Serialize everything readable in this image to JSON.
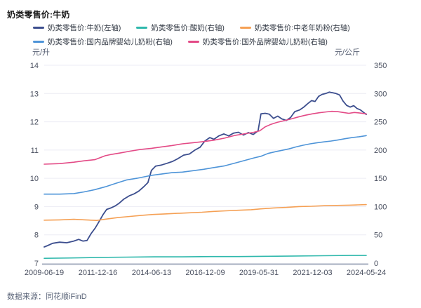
{
  "title": "奶类零售价:牛奶",
  "source_note": "数据来源：同花顺iFinD",
  "axis_units": {
    "left": "元/升",
    "right": "元/公斤"
  },
  "colors": {
    "milk_navy": "#3C4E8E",
    "yogurt_teal": "#2FB8AC",
    "senior_powder_orange": "#F5A054",
    "domestic_infant_blue": "#4E94D8",
    "foreign_infant_pink": "#E34A86",
    "gridline": "#ECECF4",
    "axis_line": "#A6AEBF",
    "tick_text": "#4A5060"
  },
  "chart_data": {
    "type": "line",
    "title": "奶类零售价:牛奶",
    "x_tick_labels": [
      "2009-06-19",
      "2011-12-16",
      "2014-06-13",
      "2016-12-09",
      "2019-05-31",
      "2021-12-03",
      "2024-05-24"
    ],
    "left_axis": {
      "unit": "元/升",
      "min": 7,
      "max": 14,
      "ticks": [
        7,
        8,
        9,
        10,
        11,
        12,
        13,
        14
      ]
    },
    "right_axis": {
      "unit": "元/公斤",
      "min": 0,
      "max": 350,
      "ticks": [
        0,
        50,
        100,
        150,
        200,
        250,
        300,
        350
      ]
    },
    "legend_position": "top",
    "grid": true,
    "series": [
      {
        "name": "奶类零售价:牛奶(左轴)",
        "axis": "left",
        "color": "#3C4E8E",
        "points": [
          [
            0,
            7.57
          ],
          [
            0.011,
            7.62
          ],
          [
            0.026,
            7.7
          ],
          [
            0.048,
            7.74
          ],
          [
            0.07,
            7.72
          ],
          [
            0.092,
            7.78
          ],
          [
            0.107,
            7.84
          ],
          [
            0.12,
            7.78
          ],
          [
            0.133,
            7.8
          ],
          [
            0.146,
            8.05
          ],
          [
            0.159,
            8.25
          ],
          [
            0.172,
            8.5
          ],
          [
            0.183,
            8.72
          ],
          [
            0.194,
            8.9
          ],
          [
            0.207,
            8.95
          ],
          [
            0.22,
            9.02
          ],
          [
            0.233,
            9.12
          ],
          [
            0.248,
            9.27
          ],
          [
            0.264,
            9.38
          ],
          [
            0.279,
            9.45
          ],
          [
            0.294,
            9.55
          ],
          [
            0.309,
            9.7
          ],
          [
            0.322,
            9.85
          ],
          [
            0.333,
            10.28
          ],
          [
            0.346,
            10.43
          ],
          [
            0.364,
            10.47
          ],
          [
            0.381,
            10.53
          ],
          [
            0.399,
            10.6
          ],
          [
            0.416,
            10.7
          ],
          [
            0.433,
            10.82
          ],
          [
            0.451,
            10.86
          ],
          [
            0.468,
            11.0
          ],
          [
            0.484,
            11.1
          ],
          [
            0.499,
            11.32
          ],
          [
            0.514,
            11.44
          ],
          [
            0.527,
            11.38
          ],
          [
            0.542,
            11.5
          ],
          [
            0.558,
            11.57
          ],
          [
            0.573,
            11.5
          ],
          [
            0.588,
            11.6
          ],
          [
            0.603,
            11.63
          ],
          [
            0.619,
            11.53
          ],
          [
            0.634,
            11.62
          ],
          [
            0.649,
            11.55
          ],
          [
            0.664,
            11.68
          ],
          [
            0.673,
            12.28
          ],
          [
            0.686,
            12.3
          ],
          [
            0.699,
            12.27
          ],
          [
            0.712,
            12.12
          ],
          [
            0.725,
            12.2
          ],
          [
            0.738,
            12.1
          ],
          [
            0.752,
            12.05
          ],
          [
            0.765,
            12.15
          ],
          [
            0.778,
            12.36
          ],
          [
            0.793,
            12.42
          ],
          [
            0.806,
            12.52
          ],
          [
            0.819,
            12.65
          ],
          [
            0.83,
            12.75
          ],
          [
            0.841,
            12.72
          ],
          [
            0.852,
            12.9
          ],
          [
            0.863,
            12.97
          ],
          [
            0.874,
            13.0
          ],
          [
            0.885,
            13.05
          ],
          [
            0.895,
            13.03
          ],
          [
            0.906,
            13.0
          ],
          [
            0.917,
            12.95
          ],
          [
            0.928,
            12.73
          ],
          [
            0.939,
            12.58
          ],
          [
            0.95,
            12.52
          ],
          [
            0.961,
            12.57
          ],
          [
            0.971,
            12.47
          ],
          [
            0.982,
            12.42
          ],
          [
            0.993,
            12.32
          ],
          [
            1,
            12.26
          ]
        ]
      },
      {
        "name": "奶类零售价:酸奶(右轴)",
        "axis": "right",
        "color": "#2FB8AC",
        "points": [
          [
            0,
            8.5
          ],
          [
            0.081,
            9
          ],
          [
            0.168,
            10
          ],
          [
            0.255,
            10.5
          ],
          [
            0.342,
            11
          ],
          [
            0.429,
            11
          ],
          [
            0.516,
            11.5
          ],
          [
            0.603,
            11.5
          ],
          [
            0.691,
            12
          ],
          [
            0.778,
            12.5
          ],
          [
            0.865,
            13
          ],
          [
            0.952,
            13.5
          ],
          [
            1,
            13.5
          ]
        ]
      },
      {
        "name": "奶类零售价:中老年奶粉(右轴)",
        "axis": "right",
        "color": "#F5A054",
        "points": [
          [
            0,
            76
          ],
          [
            0.048,
            76.5
          ],
          [
            0.092,
            77.5
          ],
          [
            0.129,
            76.5
          ],
          [
            0.163,
            75.5
          ],
          [
            0.194,
            78
          ],
          [
            0.229,
            80.5
          ],
          [
            0.266,
            82.5
          ],
          [
            0.303,
            84.5
          ],
          [
            0.338,
            86
          ],
          [
            0.375,
            87
          ],
          [
            0.412,
            88
          ],
          [
            0.451,
            89
          ],
          [
            0.49,
            90
          ],
          [
            0.527,
            91.5
          ],
          [
            0.564,
            92.5
          ],
          [
            0.603,
            93.5
          ],
          [
            0.643,
            94.5
          ],
          [
            0.673,
            96
          ],
          [
            0.712,
            97.5
          ],
          [
            0.752,
            98.5
          ],
          [
            0.791,
            100
          ],
          [
            0.83,
            100.5
          ],
          [
            0.869,
            101.5
          ],
          [
            0.908,
            102
          ],
          [
            0.948,
            102.5
          ],
          [
            0.974,
            103
          ],
          [
            1,
            103.5
          ]
        ]
      },
      {
        "name": "奶类零售价:国内品牌婴幼儿奶粉(右轴)",
        "axis": "right",
        "color": "#4E94D8",
        "points": [
          [
            0,
            122
          ],
          [
            0.048,
            122
          ],
          [
            0.092,
            123
          ],
          [
            0.124,
            126
          ],
          [
            0.157,
            130
          ],
          [
            0.19,
            135
          ],
          [
            0.222,
            141
          ],
          [
            0.255,
            147
          ],
          [
            0.288,
            150
          ],
          [
            0.331,
            155
          ],
          [
            0.364,
            157.5
          ],
          [
            0.397,
            160
          ],
          [
            0.429,
            161
          ],
          [
            0.462,
            163.5
          ],
          [
            0.495,
            166
          ],
          [
            0.527,
            169
          ],
          [
            0.56,
            172
          ],
          [
            0.593,
            177
          ],
          [
            0.625,
            182
          ],
          [
            0.651,
            186
          ],
          [
            0.673,
            189
          ],
          [
            0.695,
            194
          ],
          [
            0.717,
            197
          ],
          [
            0.738,
            199.5
          ],
          [
            0.76,
            202
          ],
          [
            0.782,
            205.5
          ],
          [
            0.804,
            208.5
          ],
          [
            0.826,
            211
          ],
          [
            0.848,
            213
          ],
          [
            0.869,
            214.5
          ],
          [
            0.891,
            216
          ],
          [
            0.913,
            218
          ],
          [
            0.934,
            220
          ],
          [
            0.956,
            222
          ],
          [
            0.978,
            223.5
          ],
          [
            1,
            225.5
          ]
        ]
      },
      {
        "name": "奶类零售价:国外品牌婴幼儿奶粉(右轴)",
        "axis": "right",
        "color": "#E34A86",
        "points": [
          [
            0,
            175
          ],
          [
            0.048,
            176
          ],
          [
            0.092,
            178.5
          ],
          [
            0.124,
            181
          ],
          [
            0.157,
            183
          ],
          [
            0.19,
            190
          ],
          [
            0.211,
            192.5
          ],
          [
            0.237,
            195
          ],
          [
            0.266,
            198
          ],
          [
            0.298,
            201
          ],
          [
            0.333,
            203
          ],
          [
            0.364,
            205.5
          ],
          [
            0.397,
            208
          ],
          [
            0.429,
            211
          ],
          [
            0.462,
            213
          ],
          [
            0.495,
            215
          ],
          [
            0.527,
            217.5
          ],
          [
            0.56,
            221
          ],
          [
            0.593,
            226
          ],
          [
            0.625,
            229
          ],
          [
            0.651,
            231.5
          ],
          [
            0.669,
            234
          ],
          [
            0.686,
            241
          ],
          [
            0.704,
            245.5
          ],
          [
            0.723,
            249
          ],
          [
            0.745,
            252
          ],
          [
            0.767,
            255
          ],
          [
            0.789,
            258.5
          ],
          [
            0.81,
            261.5
          ],
          [
            0.832,
            264
          ],
          [
            0.854,
            266
          ],
          [
            0.876,
            267.5
          ],
          [
            0.893,
            268.5
          ],
          [
            0.911,
            268
          ],
          [
            0.928,
            266.5
          ],
          [
            0.946,
            265
          ],
          [
            0.963,
            266.5
          ],
          [
            0.98,
            265.5
          ],
          [
            1,
            264
          ]
        ]
      }
    ]
  }
}
